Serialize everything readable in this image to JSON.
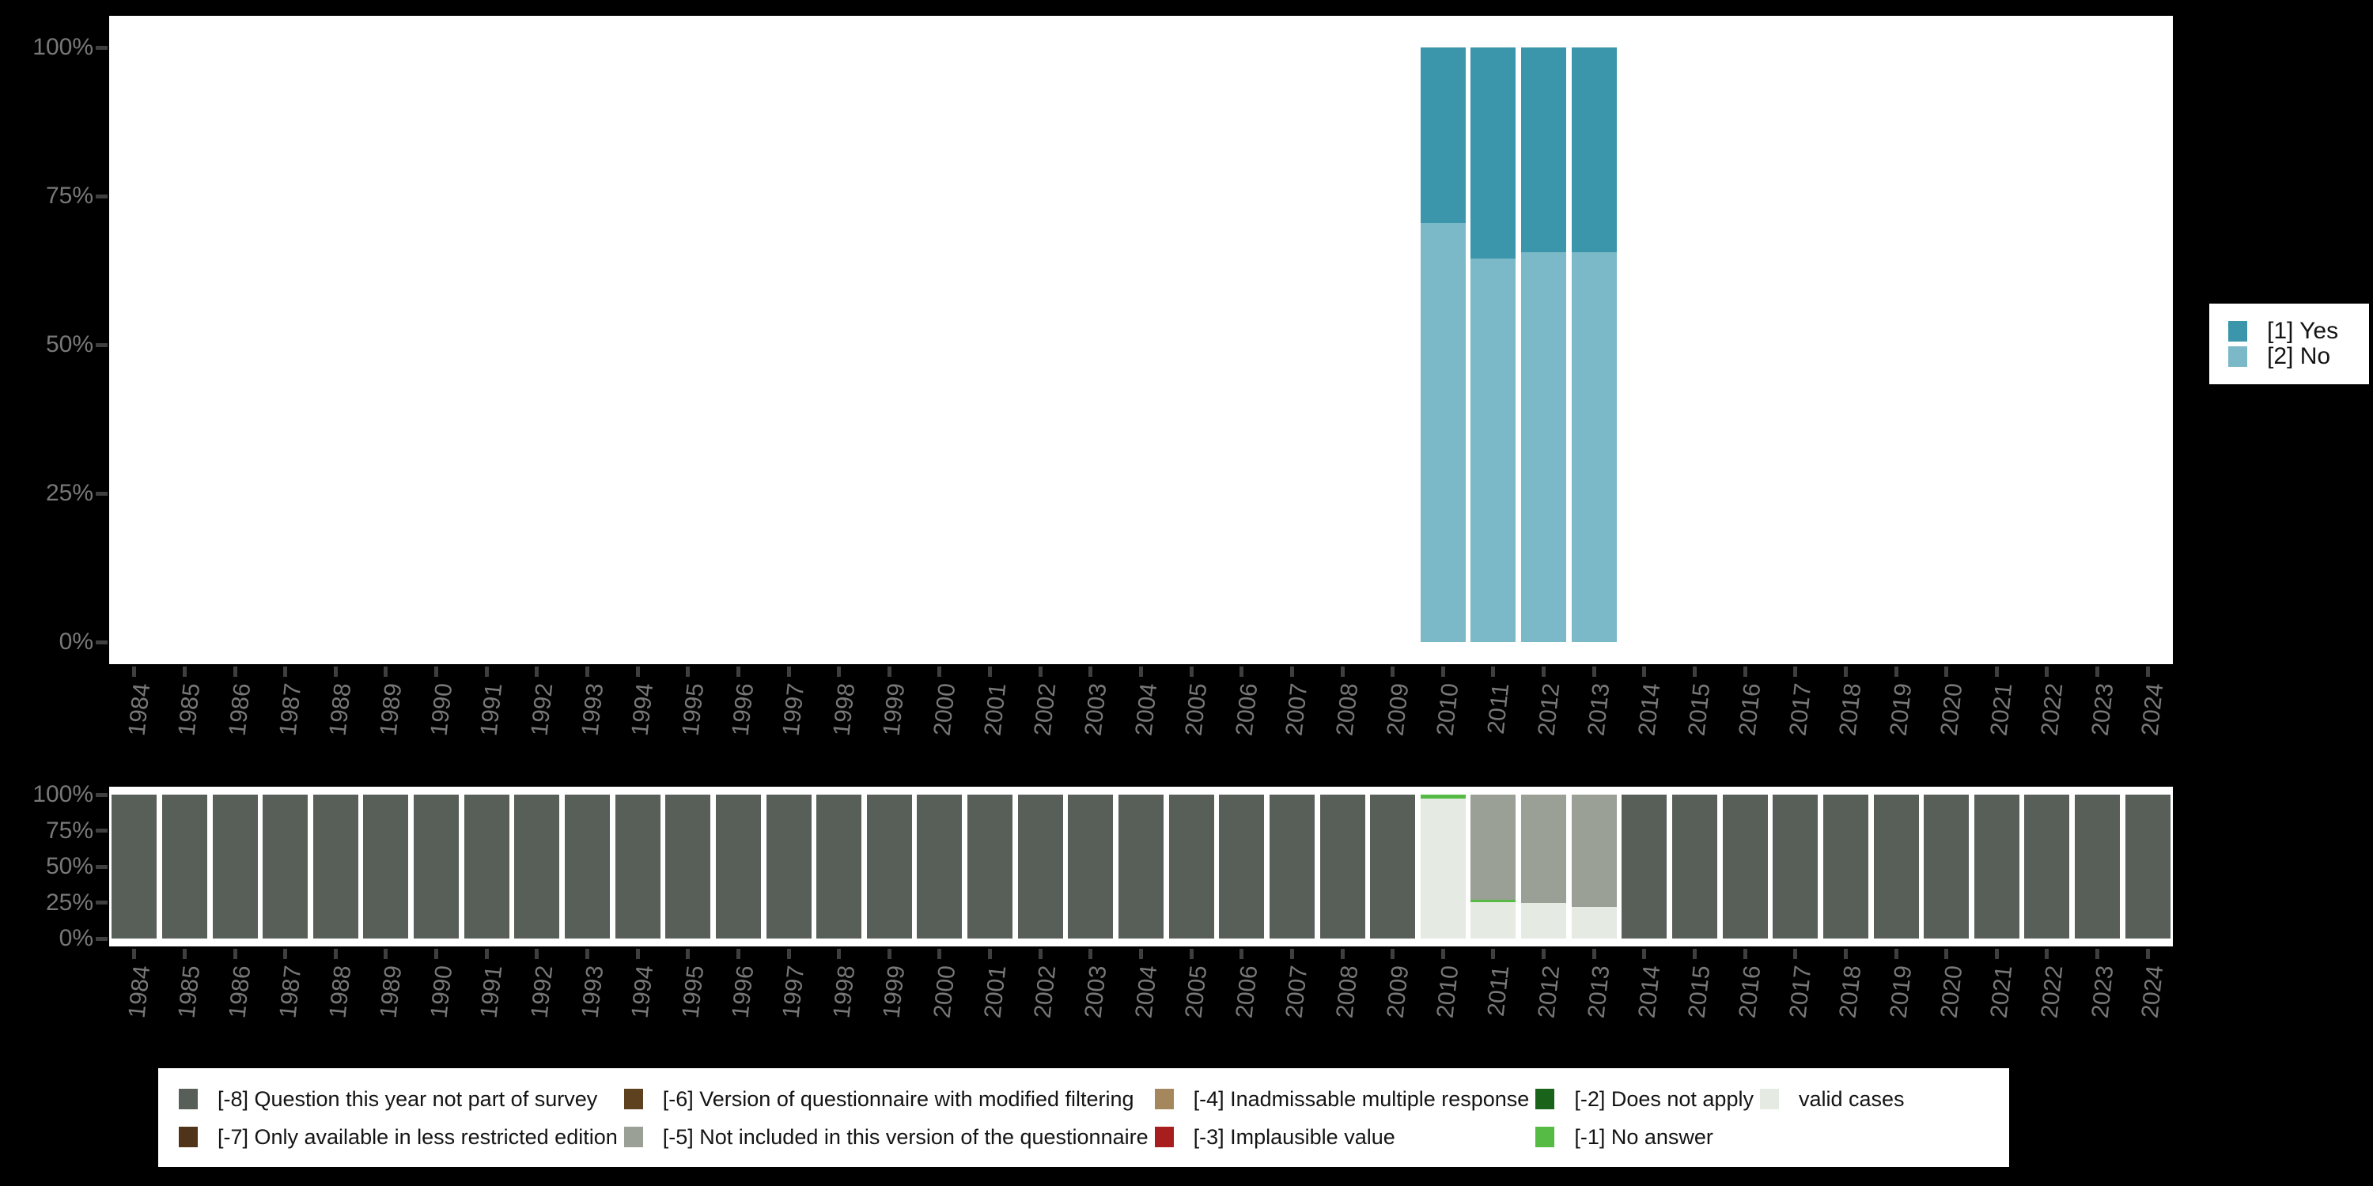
{
  "background": "#000000",
  "axis": {
    "text_color": "#787878",
    "tick_color": "#3f3f3f",
    "y_tick_labels": [
      "100%",
      "75%",
      "50%",
      "25%",
      "0%"
    ]
  },
  "years": [
    "1984",
    "1985",
    "1986",
    "1987",
    "1988",
    "1989",
    "1990",
    "1991",
    "1992",
    "1993",
    "1994",
    "1995",
    "1996",
    "1997",
    "1998",
    "1999",
    "2000",
    "2001",
    "2002",
    "2003",
    "2004",
    "2005",
    "2006",
    "2007",
    "2008",
    "2009",
    "2010",
    "2011",
    "2012",
    "2013",
    "2014",
    "2015",
    "2016",
    "2017",
    "2018",
    "2019",
    "2020",
    "2021",
    "2022",
    "2023",
    "2024"
  ],
  "chart_data": [
    {
      "type": "bar",
      "stacked": true,
      "title": "",
      "xlabel": "",
      "ylabel": "",
      "ylim": [
        0,
        100
      ],
      "grid": false,
      "legend_position": "right",
      "yticks": [
        "100%",
        "75%",
        "50%",
        "25%",
        "0%"
      ],
      "categories": [
        "1984",
        "1985",
        "1986",
        "1987",
        "1988",
        "1989",
        "1990",
        "1991",
        "1992",
        "1993",
        "1994",
        "1995",
        "1996",
        "1997",
        "1998",
        "1999",
        "2000",
        "2001",
        "2002",
        "2003",
        "2004",
        "2005",
        "2006",
        "2007",
        "2008",
        "2009",
        "2010",
        "2011",
        "2012",
        "2013",
        "2014",
        "2015",
        "2016",
        "2017",
        "2018",
        "2019",
        "2020",
        "2021",
        "2022",
        "2023",
        "2024"
      ],
      "series": [
        {
          "name": "[1] Yes",
          "color": "#3b96ab",
          "values_by_year": {
            "2010": 29.5,
            "2011": 35.5,
            "2012": 34.5,
            "2013": 34.5
          }
        },
        {
          "name": "[2] No",
          "color": "#7cb9c8",
          "values_by_year": {
            "2010": 70.5,
            "2011": 64.5,
            "2012": 65.5,
            "2013": 65.5
          }
        }
      ]
    },
    {
      "type": "bar",
      "stacked": true,
      "title": "",
      "xlabel": "",
      "ylabel": "",
      "ylim": [
        0,
        100
      ],
      "grid": false,
      "legend_position": "bottom",
      "yticks": [
        "100%",
        "75%",
        "50%",
        "25%",
        "0%"
      ],
      "categories": [
        "1984",
        "1985",
        "1986",
        "1987",
        "1988",
        "1989",
        "1990",
        "1991",
        "1992",
        "1993",
        "1994",
        "1995",
        "1996",
        "1997",
        "1998",
        "1999",
        "2000",
        "2001",
        "2002",
        "2003",
        "2004",
        "2005",
        "2006",
        "2007",
        "2008",
        "2009",
        "2010",
        "2011",
        "2012",
        "2013",
        "2014",
        "2015",
        "2016",
        "2017",
        "2018",
        "2019",
        "2020",
        "2021",
        "2022",
        "2023",
        "2024"
      ],
      "series": [
        {
          "name": "[-8] Question this year not part of survey",
          "color": "#575f58",
          "all_years_default": 100,
          "values_by_year": {
            "2010": 0,
            "2011": 0,
            "2012": 0,
            "2013": 0
          }
        },
        {
          "name": "[-5] Not included in this version of the questionnaire",
          "color": "#9aa096",
          "values_by_year": {
            "2011": 73,
            "2012": 75,
            "2013": 78
          }
        },
        {
          "name": "[-1] No answer",
          "color": "#56bb45",
          "values_by_year": {
            "2010": 3,
            "2011": 2
          }
        },
        {
          "name": "valid cases",
          "color": "#e5eae3",
          "values_by_year": {
            "2010": 97,
            "2011": 25,
            "2012": 25,
            "2013": 22
          }
        }
      ]
    }
  ],
  "legend_right": {
    "items": [
      {
        "label": "[1] Yes",
        "color": "#3b96ab"
      },
      {
        "label": "[2] No",
        "color": "#7cb9c8"
      }
    ]
  },
  "legend_bottom": {
    "items": [
      {
        "label": "[-8] Question this year not part of survey",
        "color": "#575f58"
      },
      {
        "label": "[-7] Only available in less restricted edition",
        "color": "#4f3419"
      },
      {
        "label": "[-6] Version of questionnaire with modified filtering",
        "color": "#5e421f"
      },
      {
        "label": "[-5] Not included in this version of the questionnaire",
        "color": "#9aa096"
      },
      {
        "label": "[-4] Inadmissable multiple response",
        "color": "#a5875d"
      },
      {
        "label": "[-3] Implausible value",
        "color": "#a81e1e"
      },
      {
        "label": "[-2] Does not apply",
        "color": "#19641a"
      },
      {
        "label": "[-1] No answer",
        "color": "#56bb45"
      },
      {
        "label": "valid cases",
        "color": "#e5eae3"
      }
    ]
  }
}
